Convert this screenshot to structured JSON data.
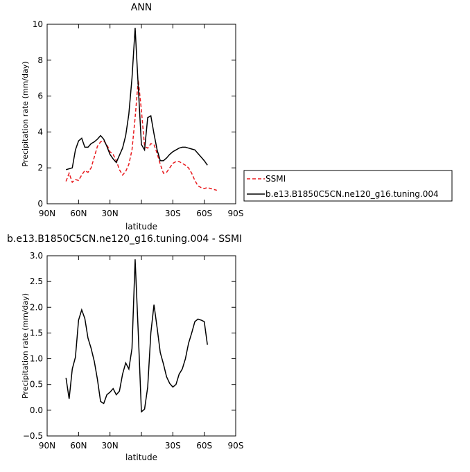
{
  "chart_data": [
    {
      "type": "line",
      "title": "ANN",
      "ylabel": "Precipitation rate (mm/day)",
      "xlabel": "latitude",
      "x": [
        72,
        69,
        66,
        63,
        60,
        57,
        54,
        51,
        48,
        45,
        42,
        39,
        36,
        33,
        30,
        27,
        24,
        21,
        18,
        15,
        12,
        9,
        6,
        3,
        0,
        -3,
        -6,
        -9,
        -12,
        -15,
        -18,
        -21,
        -24,
        -27,
        -30,
        -33,
        -36,
        -39,
        -42,
        -45,
        -48,
        -51,
        -54,
        -57,
        -60,
        -63,
        -66,
        -69,
        -72
      ],
      "series": [
        {
          "name": "SSMI",
          "color": "#e8191d",
          "dash": true,
          "values": [
            1.25,
            1.7,
            1.2,
            1.35,
            1.3,
            1.6,
            1.85,
            1.75,
            2.0,
            2.6,
            3.2,
            3.45,
            3.5,
            3.3,
            2.9,
            2.75,
            2.4,
            1.9,
            1.6,
            1.8,
            2.2,
            3.0,
            4.8,
            6.9,
            5.2,
            3.2,
            3.1,
            3.35,
            3.3,
            2.8,
            2.2,
            1.7,
            1.75,
            2.0,
            2.25,
            2.35,
            2.35,
            2.25,
            2.15,
            2.0,
            1.7,
            1.3,
            1.0,
            0.9,
            0.85,
            0.9,
            0.85,
            0.8,
            0.75
          ]
        },
        {
          "name": "b.e13.B1850C5CN.ne120_g16.tuning.004",
          "color": "#000000",
          "dash": false,
          "values": [
            1.9,
            1.95,
            2.0,
            3.0,
            3.5,
            3.65,
            3.15,
            3.15,
            3.35,
            3.45,
            3.6,
            3.8,
            3.6,
            3.2,
            2.75,
            2.5,
            2.3,
            2.7,
            3.1,
            3.8,
            5.0,
            7.0,
            9.8,
            6.5,
            3.3,
            3.0,
            4.8,
            4.9,
            3.9,
            3.0,
            2.4,
            2.4,
            2.55,
            2.75,
            2.9,
            3.0,
            3.1,
            3.15,
            3.15,
            3.1,
            3.05,
            3.0,
            2.8,
            2.6,
            2.4,
            2.15,
            null,
            null,
            null
          ]
        }
      ],
      "xlim": [
        90,
        -90
      ],
      "xticks": [
        {
          "value": 90,
          "label": "90N"
        },
        {
          "value": 60,
          "label": "60N"
        },
        {
          "value": 30,
          "label": "30N"
        },
        {
          "value": 0,
          "label": null
        },
        {
          "value": -30,
          "label": "30S"
        },
        {
          "value": -60,
          "label": "60S"
        },
        {
          "value": -90,
          "label": "90S"
        }
      ],
      "ylim": [
        0,
        10
      ],
      "yticks": [
        0,
        2,
        4,
        6,
        8,
        10
      ],
      "legend": "right"
    },
    {
      "type": "line",
      "title": "b.e13.B1850C5CN.ne120_g16.tuning.004 - SSMI",
      "ylabel": "Precipitation rate (mm/day)",
      "xlabel": "latitude",
      "x": [
        72,
        69,
        66,
        63,
        60,
        57,
        54,
        51,
        48,
        45,
        42,
        39,
        36,
        33,
        30,
        27,
        24,
        21,
        18,
        15,
        12,
        9,
        6,
        3,
        0,
        -3,
        -6,
        -9,
        -12,
        -15,
        -18,
        -21,
        -24,
        -27,
        -30,
        -33,
        -36,
        -39,
        -42,
        -45,
        -48,
        -51,
        -54,
        -57,
        -60,
        -63,
        -66,
        -69,
        -72
      ],
      "series": [
        {
          "color": "#000000",
          "dash": false,
          "values": [
            0.63,
            0.22,
            0.8,
            1.03,
            1.75,
            1.95,
            1.78,
            1.4,
            1.2,
            0.95,
            0.6,
            0.17,
            0.13,
            0.3,
            0.35,
            0.42,
            0.3,
            0.37,
            0.7,
            0.92,
            0.8,
            1.2,
            2.93,
            1.5,
            -0.03,
            0.02,
            0.45,
            1.5,
            2.05,
            1.6,
            1.12,
            0.9,
            0.65,
            0.52,
            0.45,
            0.5,
            0.7,
            0.8,
            1.0,
            1.3,
            1.5,
            1.72,
            1.77,
            1.75,
            1.72,
            1.27,
            null,
            null,
            null
          ]
        }
      ],
      "xlim": [
        90,
        -90
      ],
      "xticks": [
        {
          "value": 90,
          "label": "90N"
        },
        {
          "value": 60,
          "label": "60N"
        },
        {
          "value": 30,
          "label": "30N"
        },
        {
          "value": 0,
          "label": null
        },
        {
          "value": -30,
          "label": "30S"
        },
        {
          "value": -60,
          "label": "60S"
        },
        {
          "value": -90,
          "label": "90S"
        }
      ],
      "ylim": [
        -0.5,
        3.0
      ],
      "yticks": [
        {
          "value": -0.5,
          "label": "−0.5"
        },
        {
          "value": 0,
          "label": "0.0"
        },
        {
          "value": 0.5,
          "label": "0.5"
        },
        {
          "value": 1,
          "label": "1.0"
        },
        {
          "value": 1.5,
          "label": "1.5"
        },
        {
          "value": 2,
          "label": "2.0"
        },
        {
          "value": 2.5,
          "label": "2.5"
        },
        {
          "value": 3,
          "label": "3.0"
        }
      ]
    }
  ]
}
